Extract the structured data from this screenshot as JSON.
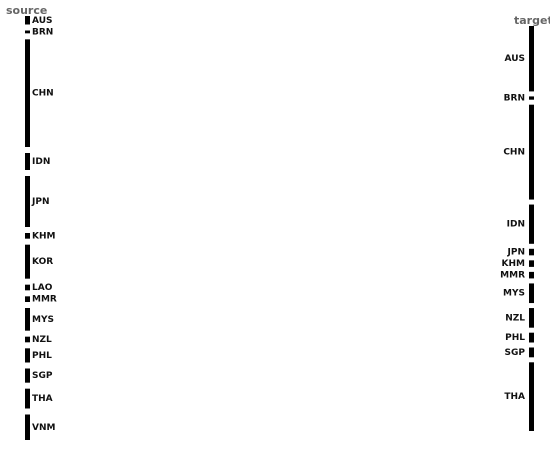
{
  "chart_data": {
    "type": "sankey",
    "source_axis_label": "source",
    "target_axis_label": "target",
    "sources": [
      {
        "name": "AUS",
        "value": 3
      },
      {
        "name": "BRN",
        "value": 1
      },
      {
        "name": "CHN",
        "value": 38
      },
      {
        "name": "IDN",
        "value": 6
      },
      {
        "name": "JPN",
        "value": 18
      },
      {
        "name": "KHM",
        "value": 2
      },
      {
        "name": "KOR",
        "value": 12
      },
      {
        "name": "LAO",
        "value": 2
      },
      {
        "name": "MMR",
        "value": 2
      },
      {
        "name": "MYS",
        "value": 8
      },
      {
        "name": "NZL",
        "value": 2
      },
      {
        "name": "PHL",
        "value": 5
      },
      {
        "name": "SGP",
        "value": 5
      },
      {
        "name": "THA",
        "value": 7
      },
      {
        "name": "VNM",
        "value": 9
      }
    ],
    "targets": [
      {
        "name": "AUS",
        "value": 20
      },
      {
        "name": "BRN",
        "value": 1
      },
      {
        "name": "CHN",
        "value": 29
      },
      {
        "name": "IDN",
        "value": 12
      },
      {
        "name": "JPN",
        "value": 2
      },
      {
        "name": "KHM",
        "value": 2
      },
      {
        "name": "MMR",
        "value": 2
      },
      {
        "name": "MYS",
        "value": 6
      },
      {
        "name": "NZL",
        "value": 6
      },
      {
        "name": "PHL",
        "value": 3
      },
      {
        "name": "SGP",
        "value": 3
      },
      {
        "name": "THA",
        "value": 21
      }
    ],
    "source_colors": [
      "#8b1a4a",
      "#a8325a",
      "#e8606a",
      "#e8553e",
      "#f57d4a",
      "#fba55b",
      "#fcc56d",
      "#fbe17e",
      "#eef08b",
      "#c9e99a",
      "#a7dba3",
      "#75c4a4",
      "#4a9bbf",
      "#4571b0",
      "#6a55a4"
    ]
  }
}
